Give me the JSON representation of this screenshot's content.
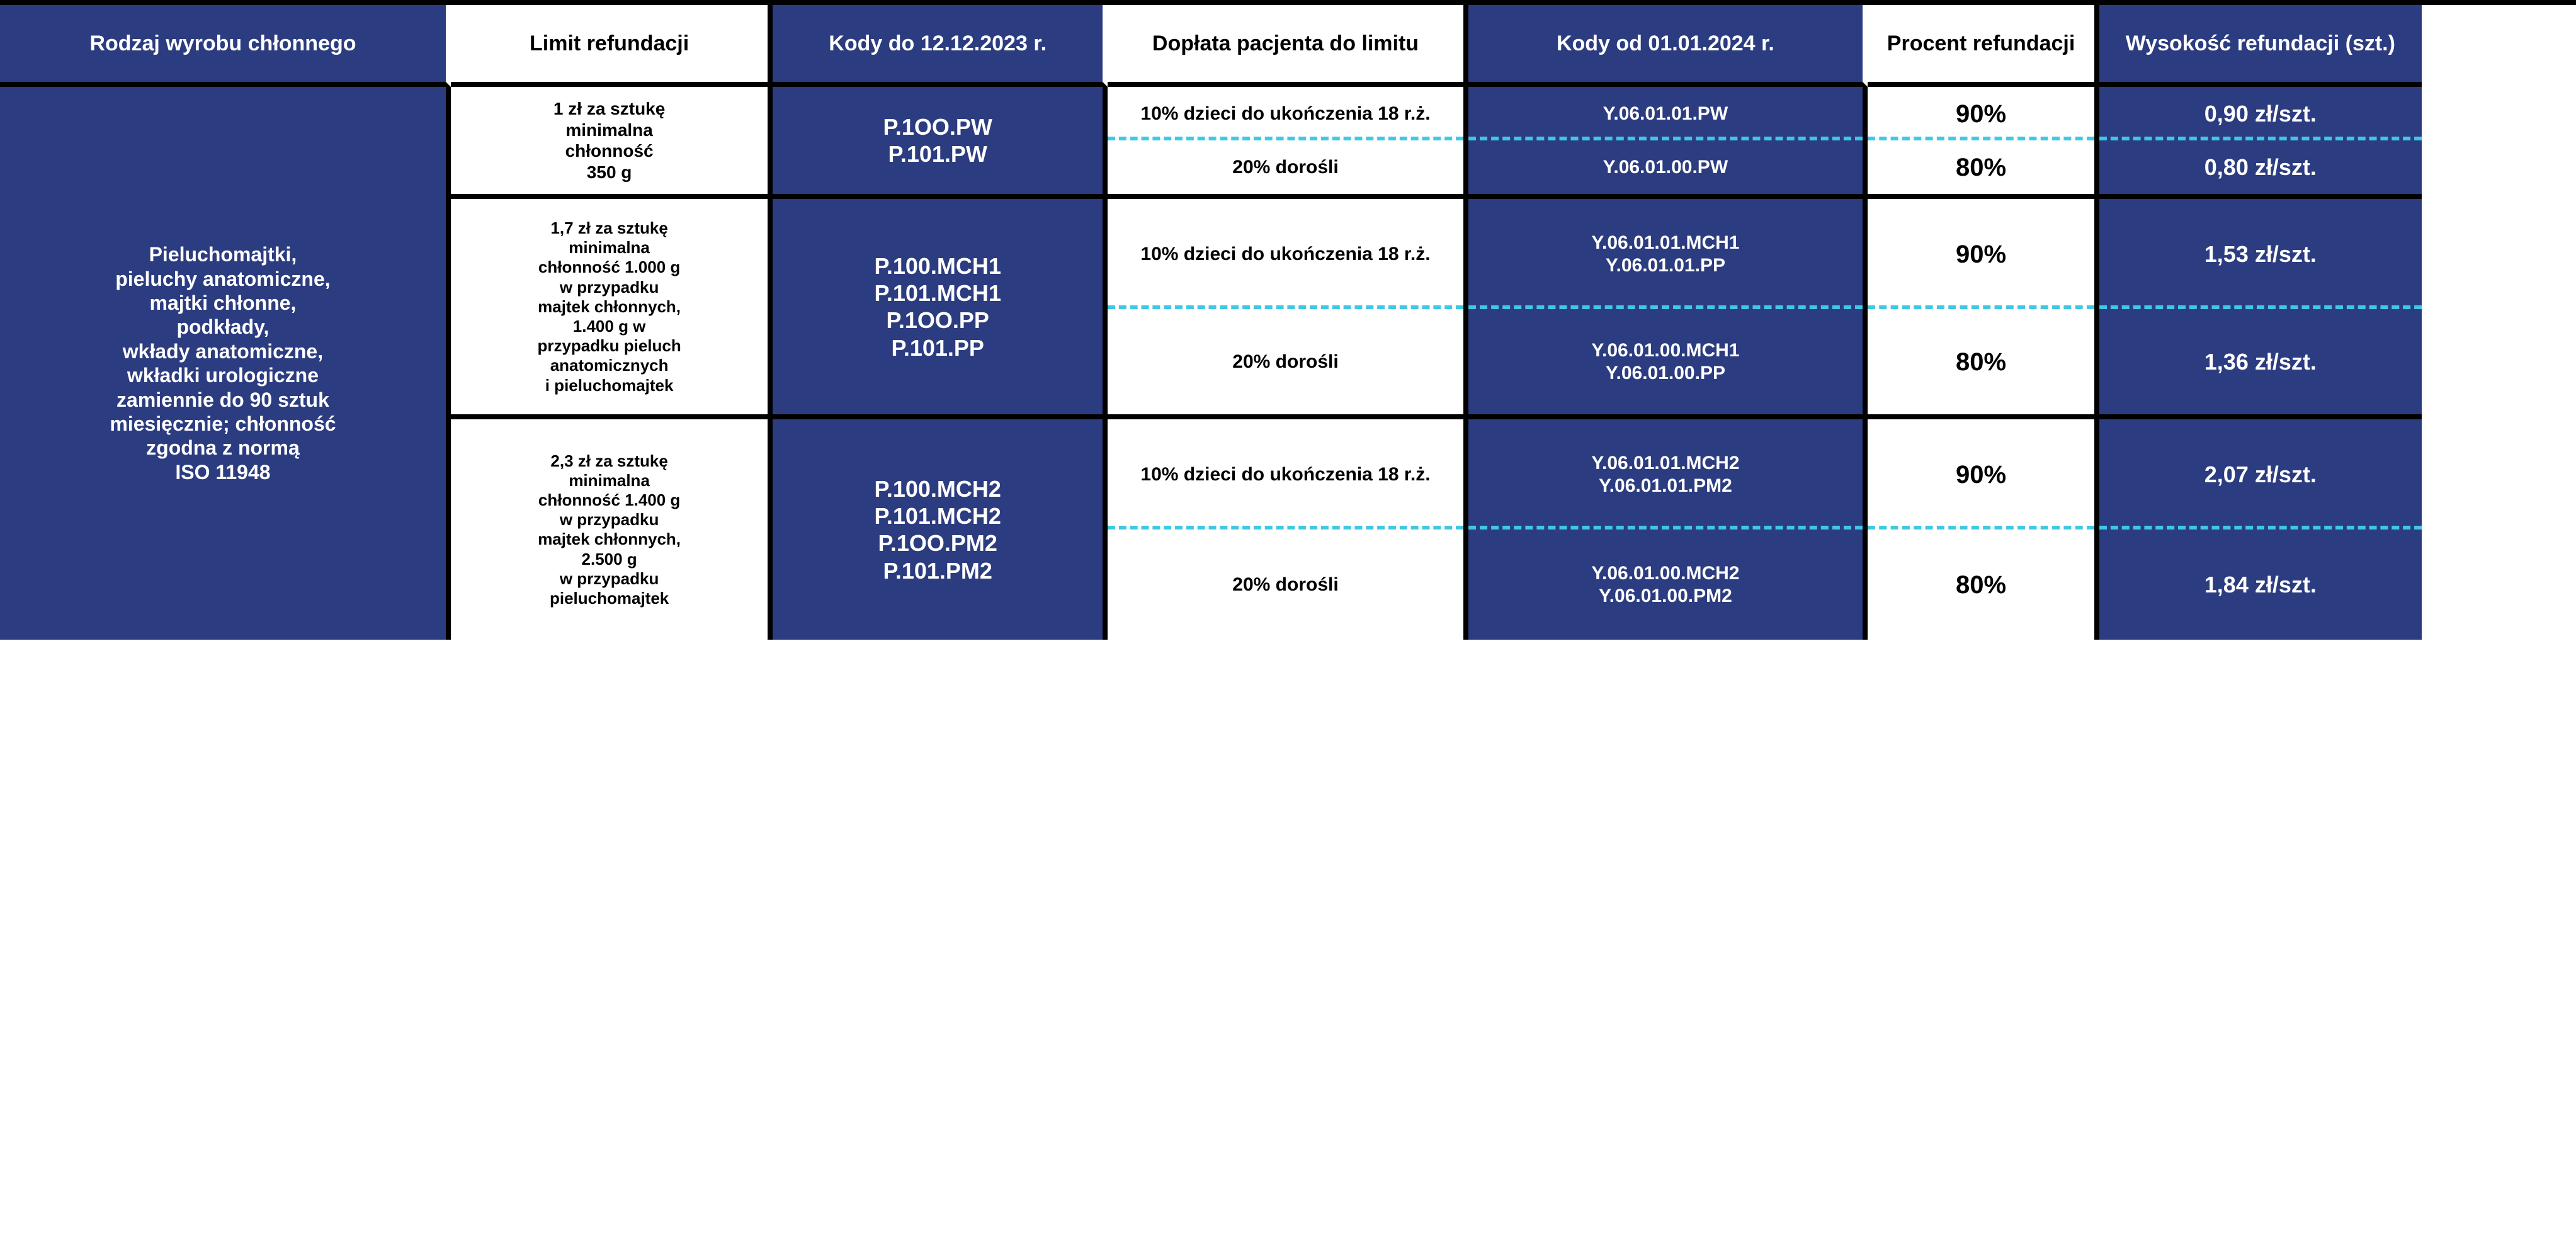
{
  "colors": {
    "navy": "#2c3c80",
    "white": "#ffffff",
    "black": "#000000",
    "cyan_dash": "#3fc8e6"
  },
  "headers": {
    "product_type": "Rodzaj wyrobu chłonnego",
    "limit": "Limit refundacji",
    "codes_old": "Kody do 12.12.2023 r.",
    "surcharge": "Dopłata pacjenta do limitu",
    "codes_new": "Kody od 01.01.2024 r.",
    "percent": "Procent refundacji",
    "amount": "Wysokość refundacji (szt.)"
  },
  "product_type": "Pieluchomajtki,\npieluchy anatomiczne,\nmajtki chłonne,\npodkłady,\nwkłady anatomiczne,\nwkładki urologiczne\nzamiennie do 90 sztuk\nmiesięcznie; chłonność\nzgodna z normą\nISO 11948",
  "groups": [
    {
      "limit": "1 zł za sztukę\nminimalna\nchłonność\n350 g",
      "codes_old": "P.1OO.PW\nP.101.PW",
      "rows": [
        {
          "surcharge": "10% dzieci do ukończenia 18 r.ż.",
          "codes_new": "Y.06.01.01.PW",
          "percent": "90%",
          "amount": "0,90 zł/szt."
        },
        {
          "surcharge": "20% dorośli",
          "codes_new": "Y.06.01.00.PW",
          "percent": "80%",
          "amount": "0,80 zł/szt."
        }
      ]
    },
    {
      "limit": "1,7 zł za sztukę\nminimalna\nchłonność 1.000 g\nw przypadku\nmajtek chłonnych,\n1.400 g w\nprzypadku pieluch\nanatomicznych\ni pieluchomajtek",
      "codes_old": "P.100.MCH1\nP.101.MCH1\nP.1OO.PP\nP.101.PP",
      "rows": [
        {
          "surcharge": "10% dzieci do ukończenia 18 r.ż.",
          "codes_new": "Y.06.01.01.MCH1\nY.06.01.01.PP",
          "percent": "90%",
          "amount": "1,53 zł/szt."
        },
        {
          "surcharge": "20% dorośli",
          "codes_new": "Y.06.01.00.MCH1\nY.06.01.00.PP",
          "percent": "80%",
          "amount": "1,36 zł/szt."
        }
      ]
    },
    {
      "limit": "2,3 zł za sztukę\nminimalna\nchłonność 1.400 g\nw przypadku\nmajtek chłonnych,\n2.500 g\nw przypadku\npieluchomajtek",
      "codes_old": "P.100.MCH2\nP.101.MCH2\nP.1OO.PM2\nP.101.PM2",
      "rows": [
        {
          "surcharge": "10% dzieci do ukończenia 18 r.ż.",
          "codes_new": "Y.06.01.01.MCH2\nY.06.01.01.PM2",
          "percent": "90%",
          "amount": "2,07 zł/szt."
        },
        {
          "surcharge": "20% dorośli",
          "codes_new": "Y.06.01.00.MCH2\nY.06.01.00.PM2",
          "percent": "80%",
          "amount": "1,84 zł/szt."
        }
      ]
    }
  ]
}
